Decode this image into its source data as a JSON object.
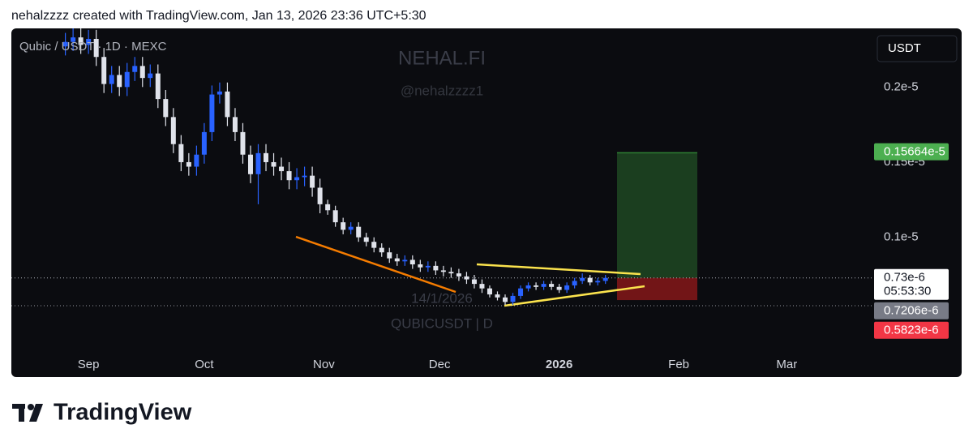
{
  "header": {
    "text": "nehalzzzz created with TradingView.com, Jan 13, 2026 23:36 UTC+5:30"
  },
  "footer": {
    "brand": "TradingView"
  },
  "chart_data": {
    "type": "candlestick",
    "title": "Qubic / USDT · 1D · MEXC",
    "currency": "USDT",
    "watermark": [
      "NEHAL.FI",
      "@nehalzzzz1"
    ],
    "annotations": [
      "14/1/2026",
      "QUBICUSDT | D"
    ],
    "up_color": "#2962ff",
    "down_color": "#e0e3eb",
    "grid": false,
    "xlim": [
      "2025-08-12",
      "2026-03-23"
    ],
    "xticks": [
      {
        "value": "2025-09-01",
        "label": "Sep"
      },
      {
        "value": "2025-10-01",
        "label": "Oct"
      },
      {
        "value": "2025-11-01",
        "label": "Nov"
      },
      {
        "value": "2025-12-01",
        "label": "Dec"
      },
      {
        "value": "2026-01-01",
        "label": "2026"
      },
      {
        "value": "2026-02-01",
        "label": "Feb"
      },
      {
        "value": "2026-03-01",
        "label": "Mar"
      }
    ],
    "ylim": [
      2.32e-07,
      2.39e-06
    ],
    "yticks": [
      {
        "value": 1e-06,
        "label": "0.1e-5"
      },
      {
        "value": 1.5e-06,
        "label": "0.15e-5"
      },
      {
        "value": 2e-06,
        "label": "0.2e-5"
      }
    ],
    "price_labels": [
      {
        "value": 1.5664e-06,
        "label": "0.15664e-5",
        "color": "#4caf50"
      },
      {
        "value": 7.3e-07,
        "label": "0.73e-6",
        "sublabel": "05:53:30",
        "color": "#ffffff"
      },
      {
        "value": 7.206e-07,
        "label": "0.7206e-6",
        "color": "#787b86"
      },
      {
        "value": 5.823e-07,
        "label": "0.5823e-6",
        "color": "#f23645"
      }
    ],
    "x": [
      "2025-08-26",
      "2025-08-28",
      "2025-08-30",
      "2025-09-01",
      "2025-09-03",
      "2025-09-05",
      "2025-09-07",
      "2025-09-09",
      "2025-09-11",
      "2025-09-13",
      "2025-09-15",
      "2025-09-17",
      "2025-09-19",
      "2025-09-21",
      "2025-09-23",
      "2025-09-25",
      "2025-09-27",
      "2025-09-29",
      "2025-10-01",
      "2025-10-03",
      "2025-10-05",
      "2025-10-07",
      "2025-10-09",
      "2025-10-11",
      "2025-10-13",
      "2025-10-15",
      "2025-10-17",
      "2025-10-19",
      "2025-10-21",
      "2025-10-23",
      "2025-10-25",
      "2025-10-27",
      "2025-10-29",
      "2025-10-31",
      "2025-11-02",
      "2025-11-04",
      "2025-11-06",
      "2025-11-08",
      "2025-11-10",
      "2025-11-12",
      "2025-11-14",
      "2025-11-16",
      "2025-11-18",
      "2025-11-20",
      "2025-11-22",
      "2025-11-24",
      "2025-11-26",
      "2025-11-28",
      "2025-11-30",
      "2025-12-02",
      "2025-12-04",
      "2025-12-06",
      "2025-12-08",
      "2025-12-10",
      "2025-12-12",
      "2025-12-14",
      "2025-12-16",
      "2025-12-18",
      "2025-12-20",
      "2025-12-22",
      "2025-12-24",
      "2025-12-26",
      "2025-12-28",
      "2025-12-30",
      "2026-01-01",
      "2026-01-03",
      "2026-01-05",
      "2026-01-07",
      "2026-01-09",
      "2026-01-11",
      "2026-01-13"
    ],
    "open": [
      2.27e-06,
      2.3e-06,
      2.33e-06,
      2.28e-06,
      2.32e-06,
      2.2e-06,
      2.02e-06,
      2.08e-06,
      2e-06,
      2.1e-06,
      2.14e-06,
      2.06e-06,
      2.09e-06,
      1.92e-06,
      1.8e-06,
      1.62e-06,
      1.5e-06,
      1.47e-06,
      1.55e-06,
      1.7e-06,
      1.95e-06,
      1.97e-06,
      1.8e-06,
      1.7e-06,
      1.55e-06,
      1.42e-06,
      1.56e-06,
      1.5e-06,
      1.47e-06,
      1.44e-06,
      1.38e-06,
      1.4e-06,
      1.41e-06,
      1.33e-06,
      1.22e-06,
      1.18e-06,
      1.1e-06,
      1.05e-06,
      1.07e-06,
      1e-06,
      9.7e-07,
      9.3e-07,
      9e-07,
      8.6e-07,
      8.4e-07,
      8.5e-07,
      8.2e-07,
      8e-07,
      8.1e-07,
      7.8e-07,
      7.7e-07,
      7.6e-07,
      7.4e-07,
      7.2e-07,
      6.9e-07,
      6.6e-07,
      6.2e-07,
      6e-07,
      5.7e-07,
      6.1e-07,
      6.6e-07,
      6.8e-07,
      6.7e-07,
      6.9e-07,
      6.7e-07,
      6.5e-07,
      6.8e-07,
      7.1e-07,
      7.3e-07,
      7e-07,
      7.1e-07
    ],
    "high": [
      2.36e-06,
      2.39e-06,
      2.39e-06,
      2.38e-06,
      2.38e-06,
      2.26e-06,
      2.14e-06,
      2.14e-06,
      2.16e-06,
      2.2e-06,
      2.2e-06,
      2.15e-06,
      2.15e-06,
      1.98e-06,
      1.86e-06,
      1.68e-06,
      1.56e-06,
      1.61e-06,
      1.76e-06,
      2.01e-06,
      2.03e-06,
      2.03e-06,
      1.86e-06,
      1.76e-06,
      1.61e-06,
      1.62e-06,
      1.62e-06,
      1.56e-06,
      1.53e-06,
      1.5e-06,
      1.46e-06,
      1.47e-06,
      1.47e-06,
      1.39e-06,
      1.25e-06,
      1.21e-06,
      1.13e-06,
      1.1e-06,
      1.1e-06,
      1.03e-06,
      1e-06,
      9.6e-07,
      9.3e-07,
      8.9e-07,
      8.8e-07,
      8.8e-07,
      8.5e-07,
      8.4e-07,
      8.4e-07,
      8.1e-07,
      8e-07,
      7.9e-07,
      7.7e-07,
      7.5e-07,
      7.2e-07,
      6.8e-07,
      6.4e-07,
      6.2e-07,
      6.3e-07,
      6.8e-07,
      7e-07,
      7e-07,
      7.1e-07,
      7.1e-07,
      6.9e-07,
      7e-07,
      7.3e-07,
      7.6e-07,
      7.5e-07,
      7.3e-07,
      7.5e-07
    ],
    "low": [
      2.21e-06,
      2.24e-06,
      2.22e-06,
      2.22e-06,
      2.14e-06,
      1.96e-06,
      1.96e-06,
      1.94e-06,
      1.94e-06,
      2.04e-06,
      2e-06,
      2e-06,
      1.86e-06,
      1.74e-06,
      1.56e-06,
      1.44e-06,
      1.41e-06,
      1.41e-06,
      1.49e-06,
      1.64e-06,
      1.89e-06,
      1.74e-06,
      1.64e-06,
      1.49e-06,
      1.36e-06,
      1.22e-06,
      1.44e-06,
      1.41e-06,
      1.38e-06,
      1.32e-06,
      1.32e-06,
      1.34e-06,
      1.27e-06,
      1.16e-06,
      1.15e-06,
      1.07e-06,
      1.02e-06,
      1.02e-06,
      9.7e-07,
      9.4e-07,
      9e-07,
      8.7e-07,
      8.3e-07,
      8.1e-07,
      8.1e-07,
      7.9e-07,
      7.7e-07,
      7.7e-07,
      7.5e-07,
      7.4e-07,
      7.3e-07,
      7.1e-07,
      6.9e-07,
      6.6e-07,
      6.3e-07,
      6e-07,
      5.8e-07,
      5.5e-07,
      5.5e-07,
      5.9e-07,
      6.4e-07,
      6.5e-07,
      6.5e-07,
      6.5e-07,
      6.3e-07,
      6.3e-07,
      6.6e-07,
      6.9e-07,
      6.8e-07,
      6.8e-07,
      6.9e-07
    ],
    "close": [
      2.3e-06,
      2.33e-06,
      2.28e-06,
      2.32e-06,
      2.2e-06,
      2.02e-06,
      2.08e-06,
      2e-06,
      2.1e-06,
      2.14e-06,
      2.06e-06,
      2.09e-06,
      1.92e-06,
      1.8e-06,
      1.62e-06,
      1.5e-06,
      1.47e-06,
      1.55e-06,
      1.7e-06,
      1.95e-06,
      1.97e-06,
      1.8e-06,
      1.7e-06,
      1.55e-06,
      1.42e-06,
      1.56e-06,
      1.5e-06,
      1.47e-06,
      1.44e-06,
      1.38e-06,
      1.4e-06,
      1.41e-06,
      1.33e-06,
      1.22e-06,
      1.18e-06,
      1.1e-06,
      1.05e-06,
      1.07e-06,
      1e-06,
      9.7e-07,
      9.3e-07,
      9e-07,
      8.6e-07,
      8.4e-07,
      8.5e-07,
      8.2e-07,
      8e-07,
      8.1e-07,
      7.8e-07,
      7.7e-07,
      7.6e-07,
      7.4e-07,
      7.2e-07,
      6.9e-07,
      6.6e-07,
      6.2e-07,
      6e-07,
      5.7e-07,
      6.1e-07,
      6.6e-07,
      6.8e-07,
      6.7e-07,
      6.9e-07,
      6.7e-07,
      6.5e-07,
      6.8e-07,
      7.1e-07,
      7.3e-07,
      7e-07,
      7.1e-07,
      7.3e-07
    ]
  }
}
